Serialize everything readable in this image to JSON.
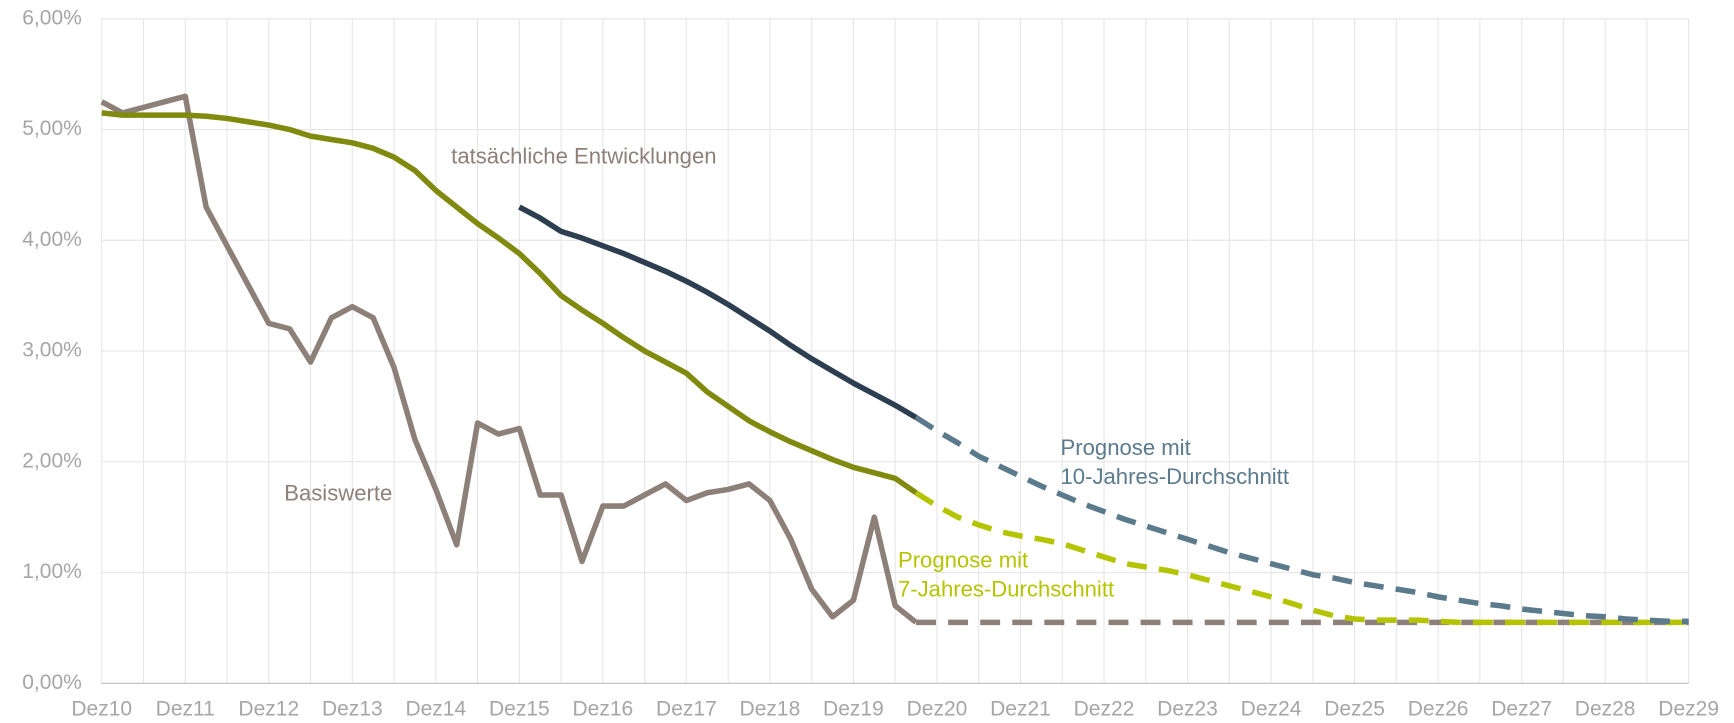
{
  "chart_data": {
    "type": "line",
    "categories": [
      "Dez10",
      null,
      null,
      null,
      "Dez11",
      null,
      null,
      null,
      "Dez12",
      null,
      null,
      null,
      "Dez13",
      null,
      null,
      null,
      "Dez14",
      null,
      null,
      null,
      "Dez15",
      null,
      null,
      null,
      "Dez16",
      null,
      null,
      null,
      "Dez17",
      null,
      null,
      null,
      "Dez18",
      null,
      null,
      null,
      "Dez19",
      null,
      null,
      null,
      "Dez20",
      null,
      null,
      null,
      "Dez21",
      null,
      null,
      null,
      "Dez22",
      null,
      null,
      null,
      "Dez23",
      null,
      null,
      null,
      "Dez24",
      null,
      null,
      null,
      "Dez25",
      null,
      null,
      null,
      "Dez26",
      null,
      null,
      null,
      "Dez27",
      null,
      null,
      null,
      "Dez28",
      null,
      null,
      null,
      "Dez29"
    ],
    "ylim": [
      0,
      6
    ],
    "yticks": [
      {
        "value": 0,
        "label": "0,00%"
      },
      {
        "value": 1,
        "label": "1,00%"
      },
      {
        "value": 2,
        "label": "2,00%"
      },
      {
        "value": 3,
        "label": "3,00%"
      },
      {
        "value": 4,
        "label": "4,00%"
      },
      {
        "value": 5,
        "label": "5,00%"
      },
      {
        "value": 6,
        "label": "6,00%"
      }
    ],
    "grid": true,
    "series": [
      {
        "color": "#8c8078",
        "dashed": false,
        "values": [
          5.25,
          5.15,
          5.2,
          5.25,
          5.3,
          4.3,
          3.95,
          3.6,
          3.25,
          3.2,
          2.9,
          3.3,
          3.4,
          3.3,
          2.85,
          2.2,
          1.75,
          1.25,
          2.35,
          2.25,
          2.3,
          1.7,
          1.7,
          1.1,
          1.6,
          1.6,
          1.7,
          1.8,
          1.65,
          1.72,
          1.75,
          1.8,
          1.65,
          1.3,
          0.85,
          0.6,
          0.75,
          1.5,
          0.7,
          0.55,
          null,
          null,
          null,
          null,
          null,
          null,
          null,
          null,
          null,
          null,
          null,
          null,
          null,
          null,
          null,
          null,
          null,
          null,
          null,
          null,
          null,
          null,
          null,
          null,
          null,
          null,
          null,
          null,
          null,
          null,
          null,
          null,
          null,
          null,
          null,
          null,
          null
        ]
      },
      {
        "color": "#8c8078",
        "dashed": true,
        "values": [
          null,
          null,
          null,
          null,
          null,
          null,
          null,
          null,
          null,
          null,
          null,
          null,
          null,
          null,
          null,
          null,
          null,
          null,
          null,
          null,
          null,
          null,
          null,
          null,
          null,
          null,
          null,
          null,
          null,
          null,
          null,
          null,
          null,
          null,
          null,
          null,
          null,
          null,
          null,
          0.55,
          0.55,
          0.55,
          0.55,
          0.55,
          0.55,
          0.55,
          0.55,
          0.55,
          0.55,
          0.55,
          0.55,
          0.55,
          0.55,
          0.55,
          0.55,
          0.55,
          0.55,
          0.55,
          0.55,
          0.55,
          0.55,
          0.55,
          0.55,
          0.55,
          0.55,
          0.55,
          0.55,
          0.55,
          0.55,
          0.55,
          0.55,
          0.55,
          0.55,
          0.55,
          0.55,
          0.55,
          0.55
        ]
      },
      {
        "color": "#7f8a0e",
        "dashed": false,
        "values": [
          5.15,
          5.13,
          5.13,
          5.13,
          5.13,
          5.12,
          5.1,
          5.07,
          5.04,
          5.0,
          4.94,
          4.91,
          4.88,
          4.83,
          4.75,
          4.63,
          4.45,
          4.3,
          4.15,
          4.02,
          3.88,
          3.7,
          3.5,
          3.37,
          3.25,
          3.12,
          3.0,
          2.9,
          2.8,
          2.63,
          2.5,
          2.37,
          2.27,
          2.18,
          2.1,
          2.02,
          1.95,
          1.9,
          1.85,
          1.72,
          null,
          null,
          null,
          null,
          null,
          null,
          null,
          null,
          null,
          null,
          null,
          null,
          null,
          null,
          null,
          null,
          null,
          null,
          null,
          null,
          null,
          null,
          null,
          null,
          null,
          null,
          null,
          null,
          null,
          null,
          null,
          null,
          null,
          null,
          null,
          null,
          null
        ]
      },
      {
        "color": "#b5c400",
        "dashed": true,
        "values": [
          null,
          null,
          null,
          null,
          null,
          null,
          null,
          null,
          null,
          null,
          null,
          null,
          null,
          null,
          null,
          null,
          null,
          null,
          null,
          null,
          null,
          null,
          null,
          null,
          null,
          null,
          null,
          null,
          null,
          null,
          null,
          null,
          null,
          null,
          null,
          null,
          null,
          null,
          null,
          1.72,
          1.6,
          1.5,
          1.43,
          1.37,
          1.33,
          1.3,
          1.26,
          1.2,
          1.14,
          1.08,
          1.05,
          1.02,
          0.98,
          0.93,
          0.88,
          0.83,
          0.78,
          0.72,
          0.66,
          0.61,
          0.58,
          0.57,
          0.57,
          0.57,
          0.56,
          0.55,
          0.55,
          0.55,
          0.55,
          0.55,
          0.55,
          0.55,
          0.55,
          0.55,
          0.55,
          0.55,
          0.55
        ]
      },
      {
        "color": "#2c3e50",
        "dashed": false,
        "values": [
          null,
          null,
          null,
          null,
          null,
          null,
          null,
          null,
          null,
          null,
          null,
          null,
          null,
          null,
          null,
          null,
          null,
          null,
          null,
          null,
          4.3,
          4.2,
          4.08,
          4.02,
          3.95,
          3.88,
          3.8,
          3.72,
          3.63,
          3.53,
          3.42,
          3.3,
          3.18,
          3.05,
          2.93,
          2.82,
          2.71,
          2.61,
          2.51,
          2.4,
          null,
          null,
          null,
          null,
          null,
          null,
          null,
          null,
          null,
          null,
          null,
          null,
          null,
          null,
          null,
          null,
          null,
          null,
          null,
          null,
          null,
          null,
          null,
          null,
          null,
          null,
          null,
          null,
          null,
          null,
          null,
          null,
          null,
          null,
          null,
          null,
          null
        ]
      },
      {
        "color": "#5b7a8c",
        "dashed": true,
        "values": [
          null,
          null,
          null,
          null,
          null,
          null,
          null,
          null,
          null,
          null,
          null,
          null,
          null,
          null,
          null,
          null,
          null,
          null,
          null,
          null,
          null,
          null,
          null,
          null,
          null,
          null,
          null,
          null,
          null,
          null,
          null,
          null,
          null,
          null,
          null,
          null,
          null,
          null,
          null,
          2.4,
          2.28,
          2.17,
          2.05,
          1.96,
          1.87,
          1.78,
          1.7,
          1.62,
          1.55,
          1.48,
          1.42,
          1.36,
          1.3,
          1.24,
          1.18,
          1.13,
          1.08,
          1.03,
          0.98,
          0.95,
          0.91,
          0.88,
          0.85,
          0.82,
          0.78,
          0.75,
          0.72,
          0.7,
          0.67,
          0.65,
          0.63,
          0.61,
          0.6,
          0.58,
          0.57,
          0.56,
          0.56
        ]
      }
    ],
    "annotations": [
      {
        "lines": [
          "tatsächliche Entwicklungen"
        ],
        "color": "#8c8078"
      },
      {
        "lines": [
          "Basiswerte"
        ],
        "color": "#8c8078"
      },
      {
        "lines": [
          "Prognose mit",
          "10-Jahres-Durchschnitt"
        ],
        "color": "#5b7a8c"
      },
      {
        "lines": [
          "Prognose mit",
          "7-Jahres-Durchschnitt"
        ],
        "color": "#b5c400"
      }
    ]
  }
}
